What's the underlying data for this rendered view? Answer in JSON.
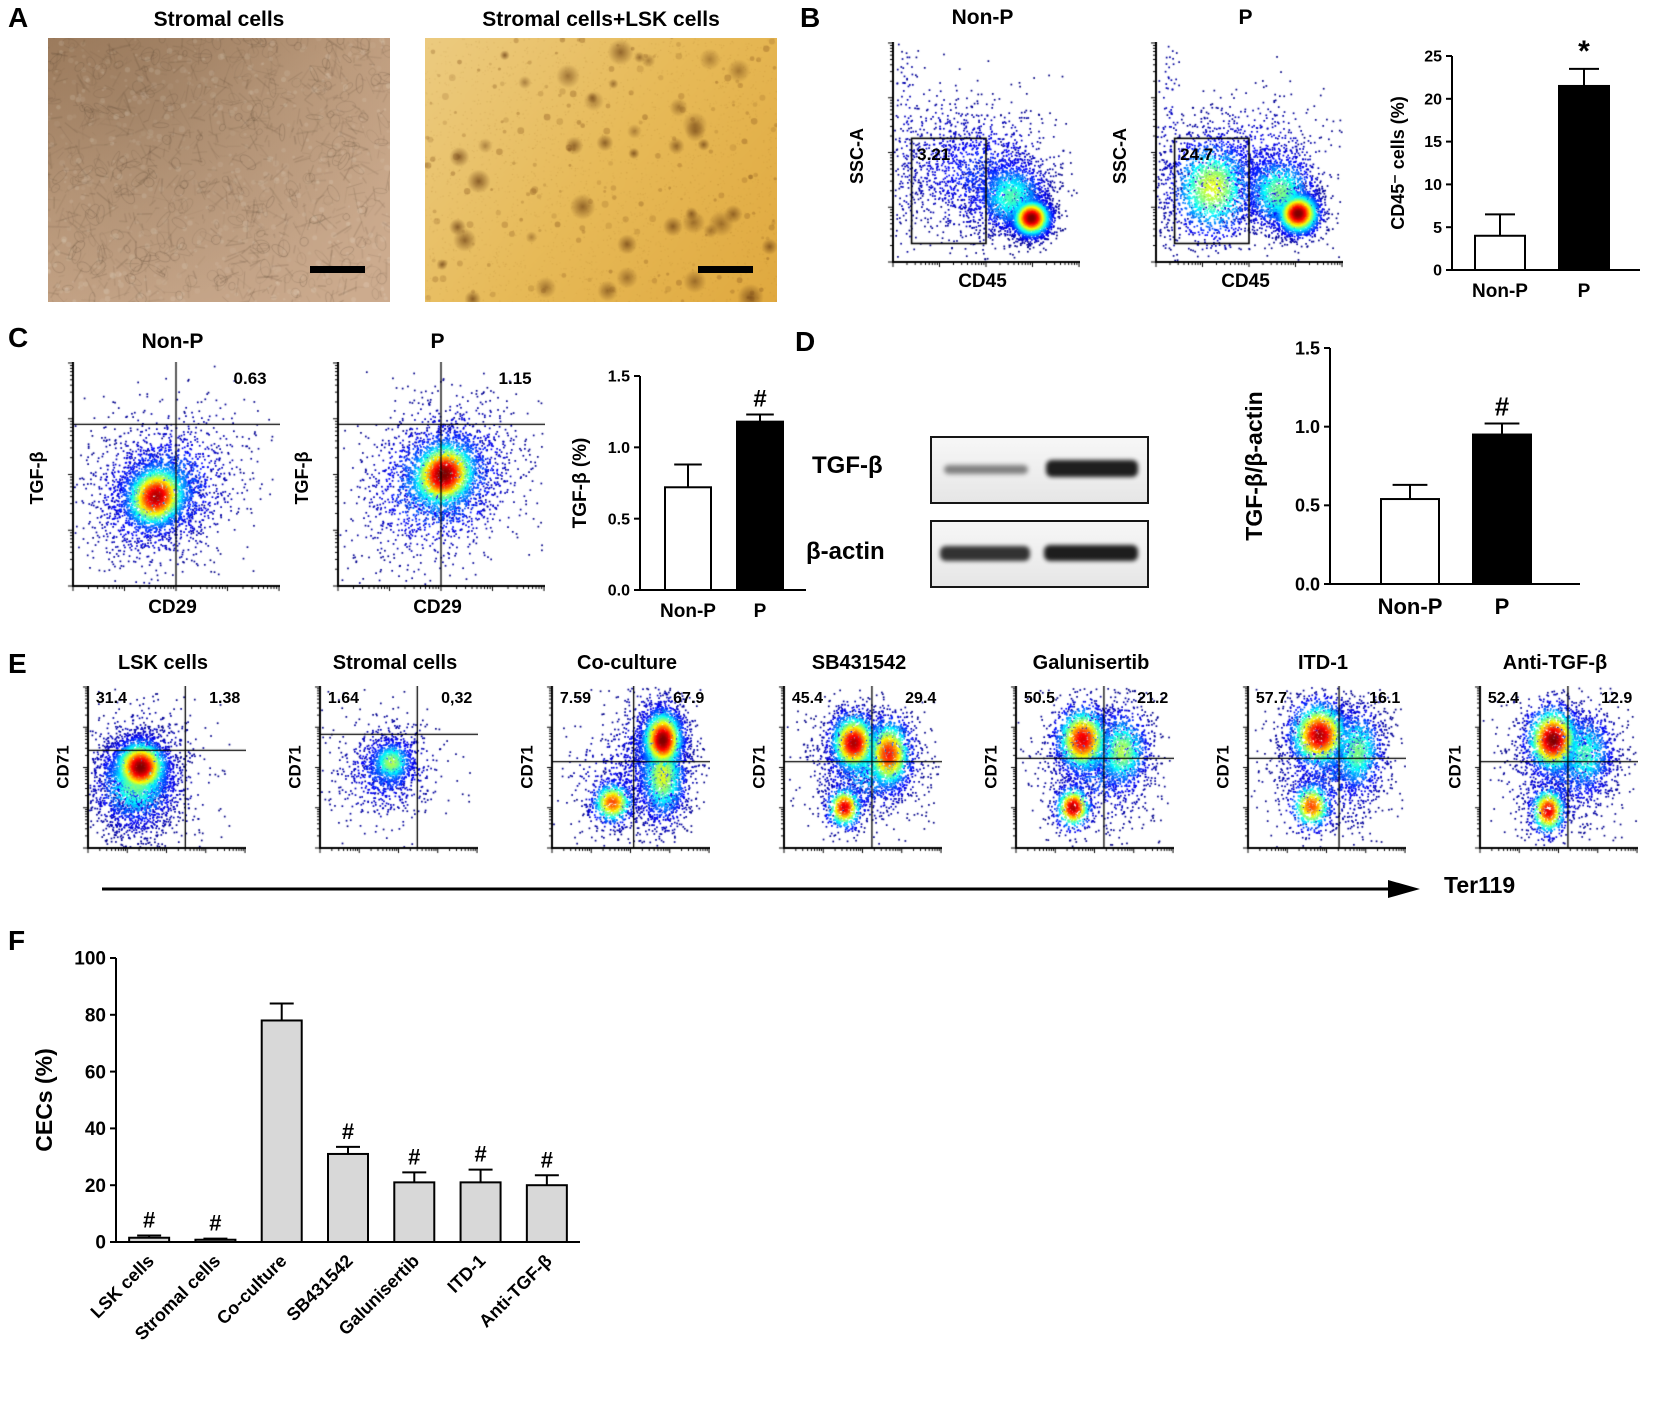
{
  "panels": {
    "A": {
      "label": "A",
      "images": [
        {
          "title": "Stromal cells"
        },
        {
          "title": "Stromal cells+LSK cells"
        }
      ]
    },
    "B": {
      "label": "B",
      "flow_plots": [
        {
          "title": "Non-P",
          "xlabel": "CD45",
          "ylabel": "SSC-A",
          "gate_value": "3.21"
        },
        {
          "title": "P",
          "xlabel": "CD45",
          "ylabel": "SSC-A",
          "gate_value": "24.7"
        }
      ],
      "chart": {
        "type": "bar",
        "ylabel": "CD45⁻ cells (%)",
        "categories": [
          "Non-P",
          "P"
        ],
        "values": [
          4,
          21.5
        ],
        "errors": [
          2.5,
          2
        ],
        "bar_colors": [
          "#ffffff",
          "#000000"
        ],
        "ylim": [
          0,
          25
        ],
        "ytick_vals": [
          0,
          5,
          10,
          15,
          20,
          25
        ],
        "ytick_labels": [
          "0",
          "5",
          "10",
          "15",
          "20",
          "25"
        ],
        "annotations": [
          "",
          "*"
        ]
      }
    },
    "C": {
      "label": "C",
      "flow_plots": [
        {
          "title": "Non-P",
          "xlabel": "CD29",
          "ylabel": "TGF-β",
          "quad_value": "0.63"
        },
        {
          "title": "P",
          "xlabel": "CD29",
          "ylabel": "TGF-β",
          "quad_value": "1.15"
        }
      ],
      "chart": {
        "type": "bar",
        "ylabel": "TGF-β (%)",
        "categories": [
          "Non-P",
          "P"
        ],
        "values": [
          0.72,
          1.18
        ],
        "errors": [
          0.16,
          0.05
        ],
        "bar_colors": [
          "#ffffff",
          "#000000"
        ],
        "ylim": [
          0,
          1.5
        ],
        "ytick_vals": [
          0,
          0.5,
          1,
          1.5
        ],
        "ytick_labels": [
          "0.0",
          "0.5",
          "1.0",
          "1.5"
        ],
        "annotations": [
          "",
          "#"
        ]
      }
    },
    "D": {
      "label": "D",
      "blot": {
        "rows": [
          {
            "label": "TGF-β"
          },
          {
            "label": "β-actin"
          }
        ]
      },
      "chart": {
        "type": "bar",
        "ylabel": "TGF-β/β-actin",
        "categories": [
          "Non-P",
          "P"
        ],
        "values": [
          0.54,
          0.95
        ],
        "errors": [
          0.09,
          0.07
        ],
        "bar_colors": [
          "#ffffff",
          "#000000"
        ],
        "ylim": [
          0,
          1.5
        ],
        "ytick_vals": [
          0,
          0.5,
          1,
          1.5
        ],
        "ytick_labels": [
          "0.0",
          "0.5",
          "1.0",
          "1.5"
        ],
        "annotations": [
          "",
          "#"
        ]
      }
    },
    "E": {
      "label": "E",
      "ylabel": "CD71",
      "xlabel": "Ter119",
      "flow_plots": [
        {
          "title": "LSK cells",
          "ul_value": "31.4",
          "ur_value": "1.38"
        },
        {
          "title": "Stromal cells",
          "ul_value": "1.64",
          "ur_value": "0,32"
        },
        {
          "title": "Co-culture",
          "ul_value": "7.59",
          "ur_value": "67.9"
        },
        {
          "title": "SB431542",
          "ul_value": "45.4",
          "ur_value": "29.4"
        },
        {
          "title": "Galunisertib",
          "ul_value": "50.5",
          "ur_value": "21.2"
        },
        {
          "title": "ITD-1",
          "ul_value": "57.7",
          "ur_value": "16.1"
        },
        {
          "title": "Anti-TGF-β",
          "ul_value": "52.4",
          "ur_value": "12.9"
        }
      ]
    },
    "F": {
      "label": "F",
      "chart": {
        "type": "bar",
        "ylabel": "CECs (%)",
        "categories": [
          "LSK cells",
          "Stromal cells",
          "Co-culture",
          "SB431542",
          "Galunisertib",
          "ITD-1",
          "Anti-TGF-β"
        ],
        "values": [
          1.5,
          0.8,
          78,
          31,
          21,
          21,
          20
        ],
        "errors": [
          0.8,
          0.4,
          6,
          2.5,
          3.5,
          4.5,
          3.5
        ],
        "bar_colors": [
          "#d8d8d8",
          "#d8d8d8",
          "#d8d8d8",
          "#d8d8d8",
          "#d8d8d8",
          "#d8d8d8",
          "#d8d8d8"
        ],
        "ylim": [
          0,
          100
        ],
        "ytick_vals": [
          0,
          20,
          40,
          60,
          80,
          100
        ],
        "ytick_labels": [
          "0",
          "20",
          "40",
          "60",
          "80",
          "100"
        ],
        "annotations": [
          "#",
          "#",
          "",
          "#",
          "#",
          "#",
          "#"
        ]
      }
    }
  }
}
